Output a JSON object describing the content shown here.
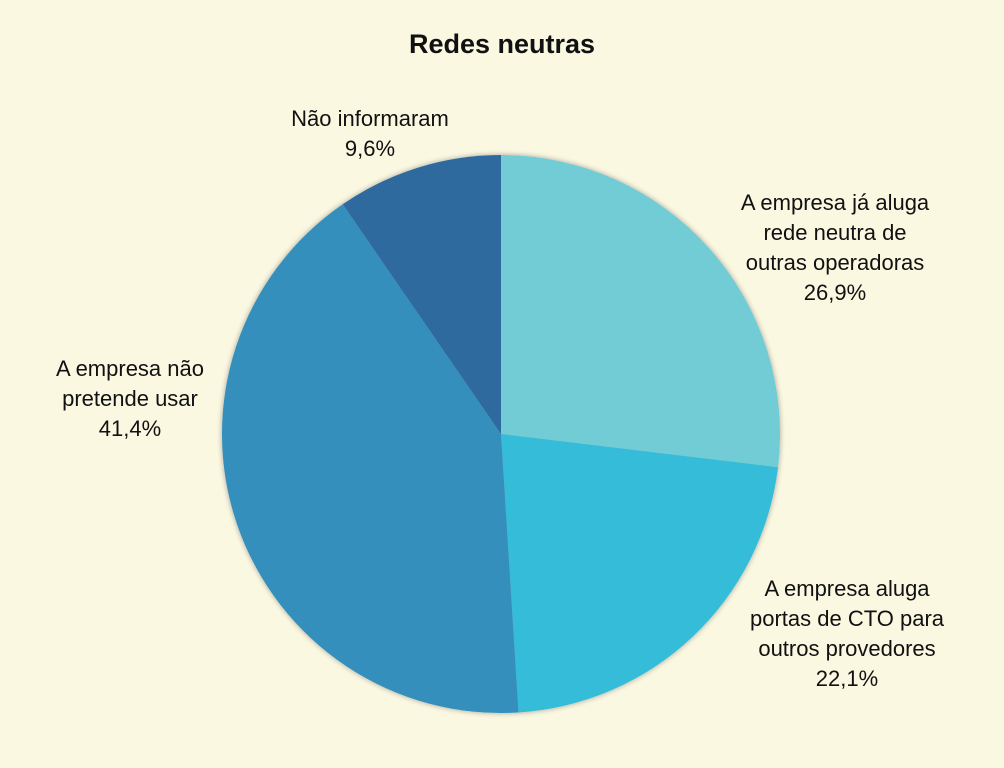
{
  "chart_data": {
    "type": "pie",
    "title": "Redes neutras",
    "slices": [
      {
        "label": "A empresa já aluga rede neutra de outras operadoras",
        "label_lines": [
          "A empresa já aluga",
          "rede neutra de",
          "outras operadoras"
        ],
        "value_label": "26,9%",
        "value": 26.9,
        "color": "#72ccd6"
      },
      {
        "label": "A empresa aluga portas de CTO para outros provedores",
        "label_lines": [
          "A empresa aluga",
          "portas de CTO para",
          "outros provedores"
        ],
        "value_label": "22,1%",
        "value": 22.1,
        "color": "#36bcd8"
      },
      {
        "label": "A empresa não pretende usar",
        "label_lines": [
          "A empresa não",
          "pretende usar"
        ],
        "value_label": "41,4%",
        "value": 41.4,
        "color": "#348fbc"
      },
      {
        "label": "Não informaram",
        "label_lines": [
          "Não informaram"
        ],
        "value_label": "9,6%",
        "value": 9.6,
        "color": "#2e6a9e"
      }
    ],
    "start": "12 o'clock",
    "direction": "clockwise",
    "legend": "none"
  }
}
